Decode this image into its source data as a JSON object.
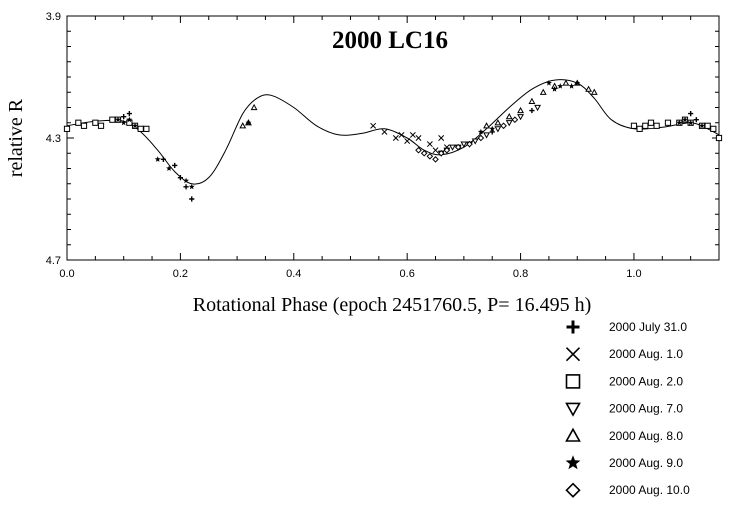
{
  "chart_data": {
    "type": "scatter",
    "title": "2000 LC16",
    "xlabel": "Rotational Phase (epoch 2451760.5, P= 16.495 h)",
    "ylabel": "relative R",
    "xlim": [
      0.0,
      1.15
    ],
    "ylim": [
      4.7,
      3.9
    ],
    "y_inverted": true,
    "grid": false,
    "legend_position": "bottom-right, below plot",
    "x_ticks": [
      "0.0",
      "0.2",
      "0.4",
      "0.6",
      "0.8",
      "1.0"
    ],
    "x_tick_values": [
      0.0,
      0.2,
      0.4,
      0.6,
      0.8,
      1.0
    ],
    "y_ticks": [
      "3.9",
      "4.3",
      "4.7"
    ],
    "y_tick_values": [
      3.9,
      4.3,
      4.7
    ],
    "fit_curve": {
      "x": [
        0.0,
        0.05,
        0.1,
        0.13,
        0.16,
        0.19,
        0.22,
        0.25,
        0.28,
        0.31,
        0.335,
        0.36,
        0.4,
        0.44,
        0.48,
        0.52,
        0.56,
        0.6,
        0.63,
        0.66,
        0.7,
        0.74,
        0.78,
        0.82,
        0.86,
        0.9,
        0.93,
        0.96,
        1.0,
        1.05,
        1.1,
        1.13,
        1.15
      ],
      "y": [
        4.26,
        4.245,
        4.245,
        4.28,
        4.34,
        4.41,
        4.45,
        4.43,
        4.34,
        4.22,
        4.17,
        4.16,
        4.2,
        4.26,
        4.29,
        4.285,
        4.27,
        4.3,
        4.34,
        4.355,
        4.33,
        4.27,
        4.2,
        4.14,
        4.11,
        4.12,
        4.17,
        4.24,
        4.27,
        4.265,
        4.25,
        4.27,
        4.29
      ]
    },
    "series": [
      {
        "name": "2000 July 31.0",
        "marker": "plus",
        "x": [
          0.1,
          0.11,
          0.17,
          0.19,
          0.2,
          0.21,
          0.22,
          0.75,
          0.77,
          0.79,
          0.82,
          1.1,
          1.11
        ],
        "y": [
          4.23,
          4.22,
          4.37,
          4.39,
          4.43,
          4.46,
          4.5,
          4.28,
          4.26,
          4.24,
          4.21,
          4.22,
          4.24
        ]
      },
      {
        "name": "2000 Aug. 1.0",
        "marker": "x",
        "x": [
          0.54,
          0.56,
          0.58,
          0.59,
          0.6,
          0.61,
          0.62,
          0.64,
          0.65,
          0.66,
          0.67
        ],
        "y": [
          4.26,
          4.28,
          4.3,
          4.29,
          4.31,
          4.29,
          4.3,
          4.32,
          4.34,
          4.3,
          4.33
        ]
      },
      {
        "name": "2000 Aug. 2.0",
        "marker": "square",
        "x": [
          0.0,
          0.02,
          0.03,
          0.05,
          0.06,
          0.08,
          0.09,
          0.11,
          0.12,
          0.13,
          0.14,
          1.0,
          1.01,
          1.02,
          1.03,
          1.04,
          1.06,
          1.08,
          1.09,
          1.1,
          1.12,
          1.13,
          1.14,
          1.15
        ],
        "y": [
          4.27,
          4.25,
          4.26,
          4.25,
          4.26,
          4.24,
          4.24,
          4.25,
          4.26,
          4.27,
          4.27,
          4.26,
          4.27,
          4.26,
          4.25,
          4.26,
          4.25,
          4.25,
          4.24,
          4.25,
          4.26,
          4.26,
          4.27,
          4.3
        ]
      },
      {
        "name": "2000 Aug. 7.0",
        "marker": "triangle-down",
        "x": [
          0.66,
          0.67,
          0.68,
          0.69,
          0.7,
          0.71,
          0.72,
          0.74,
          0.76,
          0.78,
          0.8,
          0.83
        ],
        "y": [
          4.35,
          4.34,
          4.33,
          4.33,
          4.32,
          4.32,
          4.31,
          4.29,
          4.27,
          4.25,
          4.23,
          4.2
        ]
      },
      {
        "name": "2000 Aug. 8.0",
        "marker": "triangle-up",
        "x": [
          0.31,
          0.32,
          0.33,
          0.74,
          0.76,
          0.78,
          0.8,
          0.82,
          0.84,
          0.86,
          0.88,
          0.9,
          0.92,
          0.93
        ],
        "y": [
          4.26,
          4.25,
          4.2,
          4.26,
          4.25,
          4.23,
          4.21,
          4.18,
          4.15,
          4.13,
          4.12,
          4.12,
          4.14,
          4.15
        ]
      },
      {
        "name": "2000 Aug. 9.0",
        "marker": "star",
        "x": [
          0.09,
          0.1,
          0.11,
          0.12,
          0.16,
          0.18,
          0.21,
          0.22,
          0.32,
          0.73,
          0.75,
          0.85,
          0.86,
          0.87,
          0.89,
          0.9,
          1.08,
          1.09,
          1.1,
          1.12
        ],
        "y": [
          4.24,
          4.25,
          4.24,
          4.26,
          4.37,
          4.4,
          4.44,
          4.46,
          4.25,
          4.28,
          4.27,
          4.12,
          4.14,
          4.13,
          4.13,
          4.12,
          4.25,
          4.24,
          4.25,
          4.26
        ]
      },
      {
        "name": "2000 Aug. 10.0",
        "marker": "diamond",
        "x": [
          0.62,
          0.63,
          0.64,
          0.65,
          0.66,
          0.67,
          0.69,
          0.71,
          0.73,
          0.77,
          0.79
        ],
        "y": [
          4.34,
          4.35,
          4.36,
          4.37,
          4.35,
          4.34,
          4.33,
          4.32,
          4.3,
          4.26,
          4.24
        ]
      }
    ]
  }
}
